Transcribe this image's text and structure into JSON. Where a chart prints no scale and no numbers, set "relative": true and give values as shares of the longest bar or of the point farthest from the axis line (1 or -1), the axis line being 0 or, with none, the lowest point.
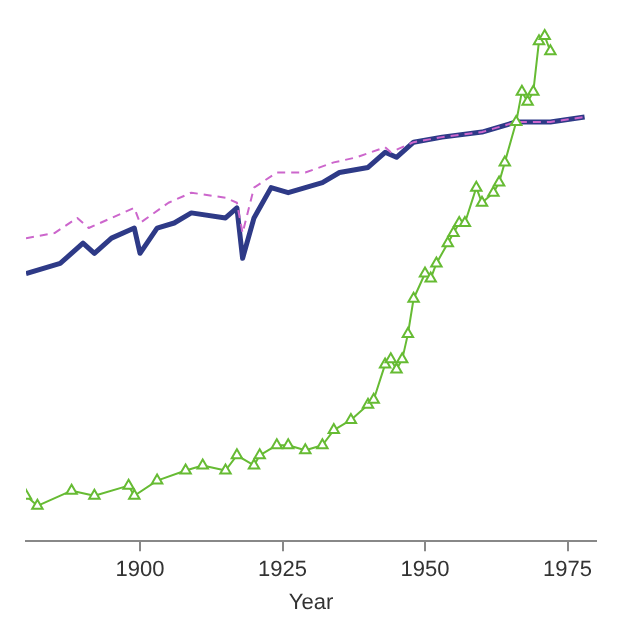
{
  "chart_data": {
    "type": "line",
    "relative": true,
    "xlabel": "Year",
    "xlim": [
      1880,
      1980
    ],
    "xticks": [
      1900,
      1925,
      1950,
      1975
    ],
    "grid": false,
    "legend": false,
    "series": [
      {
        "color": "#cc66cc",
        "line_style": "dashed",
        "marker": "none",
        "x": [
          1880,
          1885,
          1889,
          1891,
          1899,
          1900,
          1905,
          1909,
          1915,
          1917,
          1918,
          1920,
          1924,
          1929,
          1934,
          1938,
          1943,
          1944,
          1948,
          1953,
          1960,
          1966,
          1972,
          1978
        ],
        "values": [
          0.6,
          0.61,
          0.64,
          0.62,
          0.66,
          0.63,
          0.67,
          0.69,
          0.68,
          0.67,
          0.61,
          0.7,
          0.73,
          0.73,
          0.75,
          0.76,
          0.78,
          0.77,
          0.79,
          0.8,
          0.81,
          0.83,
          0.83,
          0.84
        ]
      },
      {
        "color": "#2e3a87",
        "line_style": "solid",
        "marker": "none",
        "x": [
          1880,
          1886,
          1890,
          1892,
          1895,
          1899,
          1900,
          1903,
          1906,
          1909,
          1915,
          1917,
          1918,
          1920,
          1923,
          1926,
          1929,
          1932,
          1935,
          1940,
          1943,
          1945,
          1948,
          1953,
          1960,
          1966,
          1972,
          1978
        ],
        "values": [
          0.53,
          0.55,
          0.59,
          0.57,
          0.6,
          0.62,
          0.57,
          0.62,
          0.63,
          0.65,
          0.64,
          0.66,
          0.56,
          0.64,
          0.7,
          0.69,
          0.7,
          0.71,
          0.73,
          0.74,
          0.77,
          0.76,
          0.79,
          0.8,
          0.81,
          0.83,
          0.83,
          0.84
        ]
      },
      {
        "color": "#66bb33",
        "line_style": "solid",
        "marker": "triangle",
        "x": [
          1880,
          1882,
          1888,
          1892,
          1898,
          1899,
          1903,
          1908,
          1911,
          1915,
          1917,
          1920,
          1921,
          1924,
          1926,
          1929,
          1932,
          1934,
          1937,
          1940,
          1941,
          1943,
          1944,
          1945,
          1946,
          1947,
          1948,
          1950,
          1951,
          1952,
          1954,
          1955,
          1956,
          1957,
          1959,
          1960,
          1962,
          1963,
          1964,
          1966,
          1967,
          1968,
          1969,
          1970,
          1971,
          1972
        ],
        "values": [
          0.09,
          0.07,
          0.1,
          0.09,
          0.11,
          0.09,
          0.12,
          0.14,
          0.15,
          0.14,
          0.17,
          0.15,
          0.17,
          0.19,
          0.19,
          0.18,
          0.19,
          0.22,
          0.24,
          0.27,
          0.28,
          0.35,
          0.36,
          0.34,
          0.36,
          0.41,
          0.48,
          0.53,
          0.52,
          0.55,
          0.59,
          0.61,
          0.63,
          0.63,
          0.7,
          0.67,
          0.69,
          0.71,
          0.75,
          0.83,
          0.89,
          0.87,
          0.89,
          0.99,
          1.0,
          0.97
        ]
      }
    ]
  }
}
